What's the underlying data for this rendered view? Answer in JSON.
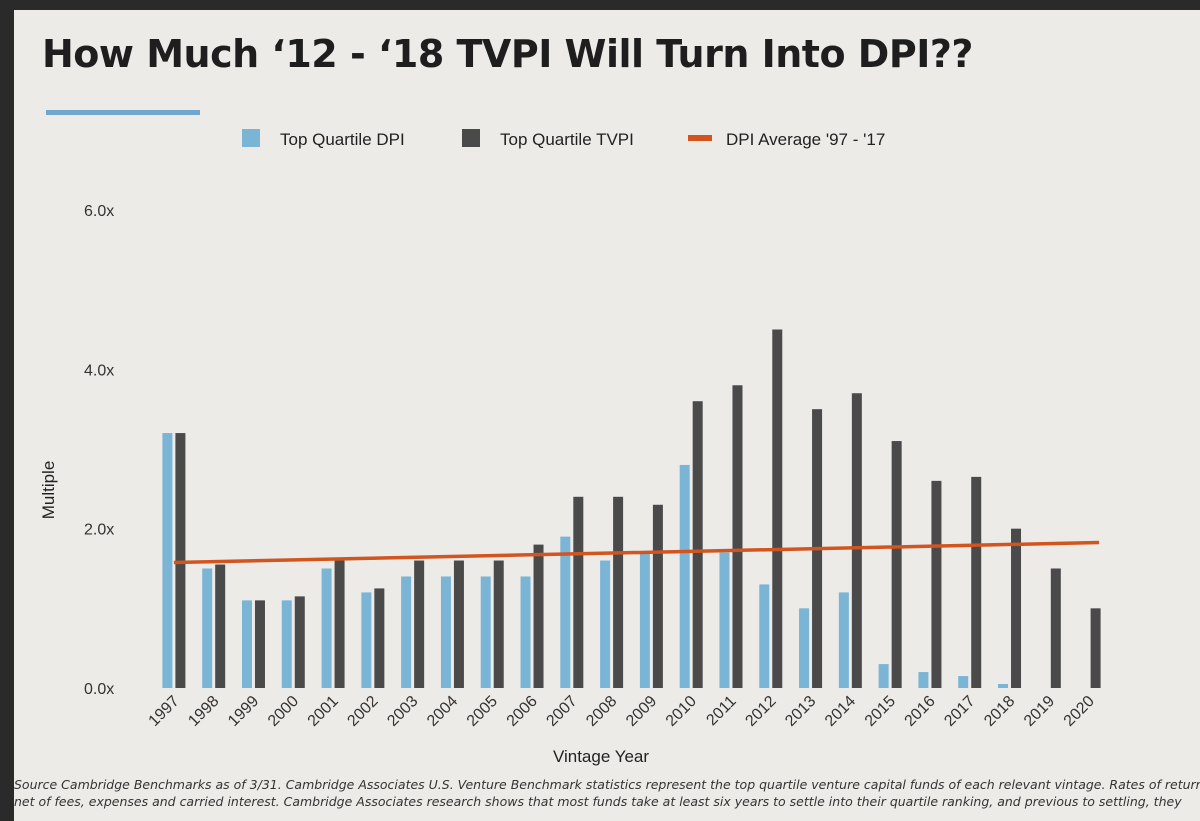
{
  "slide": {
    "title": "How Much ‘12 - ‘18 TVPI Will Turn Into DPI??",
    "footnote_line1": "Source Cambridge Benchmarks as of 3/31.  Cambridge Associates U.S. Venture Benchmark statistics represent the top quartile venture capital funds of each relevant vintage. Rates of return",
    "footnote_line2": "net of fees, expenses and carried interest. Cambridge Associates research shows that  most funds take at  least six years to settle into their quartile ranking, and previous to settling, they"
  },
  "colors": {
    "dpi": "#7ab5d6",
    "tvpi": "#4a4a4a",
    "average": "#d2541f",
    "accent": "#6fa8cc"
  },
  "chart_data": {
    "type": "bar",
    "title": "How Much ‘12 - ‘18 TVPI Will Turn Into DPI??",
    "xlabel": "Vintage Year",
    "ylabel": "Multiple",
    "ylim": [
      0,
      6
    ],
    "yticks": [
      "0.0x",
      "2.0x",
      "4.0x",
      "6.0x"
    ],
    "ytick_values": [
      0,
      2,
      4,
      6
    ],
    "legend_position": "top",
    "categories": [
      "1997",
      "1998",
      "1999",
      "2000",
      "2001",
      "2002",
      "2003",
      "2004",
      "2005",
      "2006",
      "2007",
      "2008",
      "2009",
      "2010",
      "2011",
      "2012",
      "2013",
      "2014",
      "2015",
      "2016",
      "2017",
      "2018",
      "2019",
      "2020"
    ],
    "series": [
      {
        "name": "Top Quartile DPI",
        "kind": "bar",
        "values": [
          3.2,
          1.5,
          1.1,
          1.1,
          1.5,
          1.2,
          1.4,
          1.4,
          1.4,
          1.4,
          1.9,
          1.6,
          1.7,
          2.8,
          1.7,
          1.3,
          1.0,
          1.2,
          0.3,
          0.2,
          0.15,
          0.05,
          0.0,
          0.0
        ]
      },
      {
        "name": "Top Quartile TVPI",
        "kind": "bar",
        "values": [
          3.2,
          1.55,
          1.1,
          1.15,
          1.6,
          1.25,
          1.6,
          1.6,
          1.6,
          1.8,
          2.4,
          2.4,
          2.3,
          3.6,
          3.8,
          4.5,
          3.5,
          3.7,
          3.1,
          2.6,
          2.65,
          2.0,
          1.5,
          1.0
        ]
      },
      {
        "name": "DPI Average '97 - '17",
        "kind": "line",
        "values": [
          1.6,
          1.6,
          1.6,
          1.6,
          1.6,
          1.6,
          1.6,
          1.6,
          1.6,
          1.6,
          1.6,
          1.6,
          1.6,
          1.6,
          1.6,
          1.6,
          1.6,
          1.6,
          1.6,
          1.6,
          1.6,
          1.6,
          1.6,
          1.6
        ]
      }
    ]
  }
}
